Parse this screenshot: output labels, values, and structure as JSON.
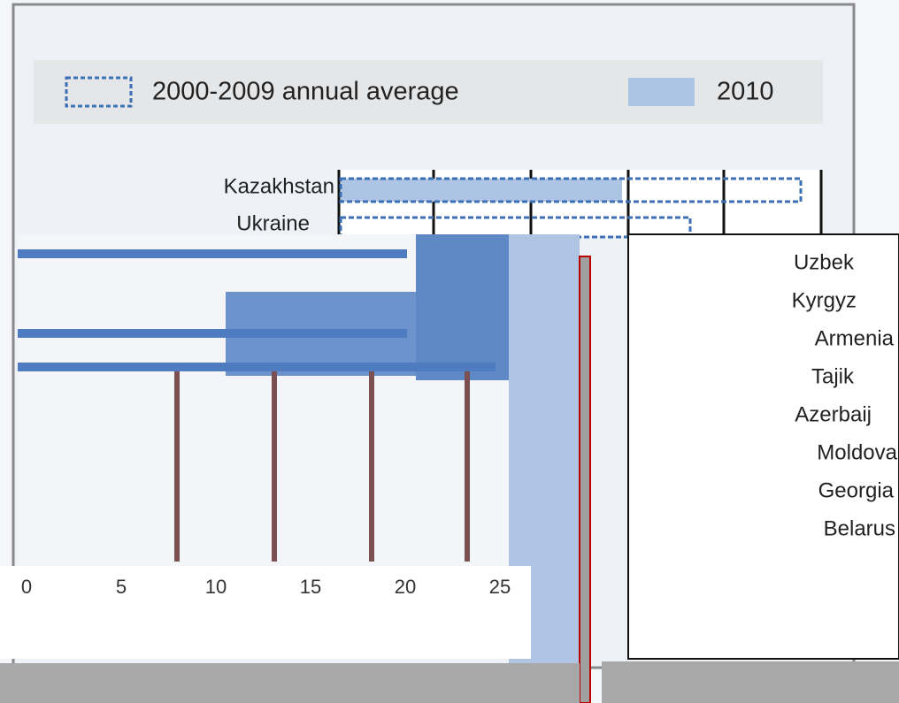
{
  "legend": {
    "items": [
      "2000-2009 annual average",
      "2010"
    ]
  },
  "chart": {
    "countries_top": [
      "Kazakhstan",
      "Ukraine"
    ],
    "countries_right": [
      "Uzbek",
      "Kyrgyz",
      "Armenia",
      "Tajik",
      "Azerbaij",
      "Moldova",
      "Georgia",
      "Belarus"
    ],
    "axis_ticks": [
      "0",
      "5",
      "10",
      "15",
      "20",
      "25"
    ]
  }
}
